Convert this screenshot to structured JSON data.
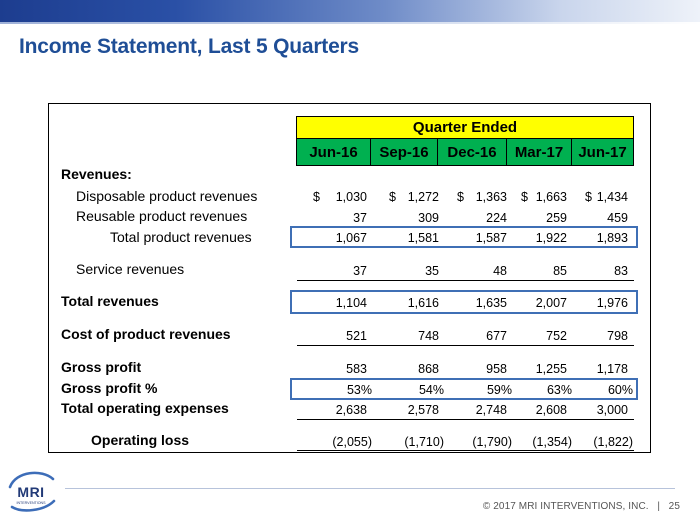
{
  "title": "Income Statement, Last 5 Quarters",
  "header": {
    "group_label": "Quarter Ended",
    "quarters": [
      "Jun-16",
      "Sep-16",
      "Dec-16",
      "Mar-17",
      "Jun-17"
    ]
  },
  "table": {
    "revenues_heading": "Revenues:",
    "rows": [
      {
        "label": "Disposable product revenues",
        "values": [
          "1,030",
          "1,272",
          "1,363",
          "1,663",
          "1,434"
        ],
        "dollar": "$"
      },
      {
        "label": "Reusable product revenues",
        "values": [
          "37",
          "309",
          "224",
          "259",
          "459"
        ]
      },
      {
        "label": "Total product revenues",
        "values": [
          "1,067",
          "1,581",
          "1,587",
          "1,922",
          "1,893"
        ]
      },
      {
        "label": "Service revenues",
        "values": [
          "37",
          "35",
          "48",
          "85",
          "83"
        ]
      },
      {
        "label": "Total revenues",
        "values": [
          "1,104",
          "1,616",
          "1,635",
          "2,007",
          "1,976"
        ]
      },
      {
        "label": "Cost of product revenues",
        "values": [
          "521",
          "748",
          "677",
          "752",
          "798"
        ]
      },
      {
        "label": "Gross profit",
        "values": [
          "583",
          "868",
          "958",
          "1,255",
          "1,178"
        ]
      },
      {
        "label": "Gross profit %",
        "values": [
          "53%",
          "54%",
          "59%",
          "63%",
          "60%"
        ]
      },
      {
        "label": "Total operating expenses",
        "values": [
          "2,638",
          "2,578",
          "2,748",
          "2,608",
          "3,000"
        ]
      },
      {
        "label": "Operating loss",
        "values": [
          "(2,055)",
          "(1,710)",
          "(1,790)",
          "(1,354)",
          "(1,822)"
        ]
      }
    ]
  },
  "footer": {
    "logo_text": "MRI",
    "logo_subtext": "INTERVENTIONS",
    "copyright": "© 2017 MRI INTERVENTIONS, INC.",
    "separator": "|",
    "page_number": "25"
  },
  "colors": {
    "title": "#1f4e96",
    "header_yellow": "#ffff00",
    "header_green": "#00b050",
    "highlight_box": "#3f6fb5"
  }
}
